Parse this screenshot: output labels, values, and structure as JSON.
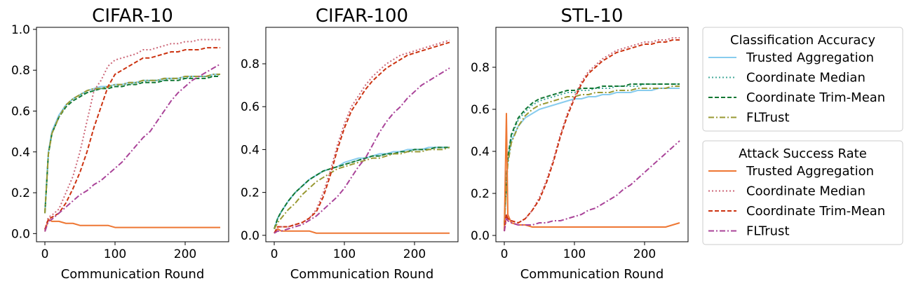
{
  "legends": [
    {
      "title": "Classification Accuracy",
      "entries": [
        "Trusted Aggregation",
        "Coordinate Median",
        "Coordinate Trim-Mean",
        "FLTrust"
      ]
    },
    {
      "title": "Attack Success Rate",
      "entries": [
        "Trusted Aggregation",
        "Coordinate Median",
        "Coordinate Trim-Mean",
        "FLTrust"
      ]
    }
  ],
  "colors": {
    "acc": [
      "#88ccee",
      "#44aa99",
      "#117733",
      "#999933"
    ],
    "asr": [
      "#ee7733",
      "#cc6677",
      "#cc3311",
      "#aa4499"
    ]
  },
  "chart_data": [
    {
      "type": "line",
      "title": "CIFAR-10",
      "xlabel": "Communication Round",
      "ylabel": "",
      "xlim": [
        -12,
        262
      ],
      "ylim": [
        -0.04,
        1.01
      ],
      "xticks": [
        0,
        100,
        200
      ],
      "yticks": [
        0.0,
        0.2,
        0.4,
        0.6,
        0.8,
        1.0
      ],
      "x": [
        0,
        5,
        10,
        20,
        30,
        40,
        50,
        60,
        70,
        80,
        90,
        100,
        110,
        120,
        130,
        140,
        150,
        160,
        170,
        180,
        190,
        200,
        210,
        220,
        230,
        240,
        250
      ],
      "series": [
        {
          "group": "acc",
          "name": "Trusted Aggregation",
          "values": [
            0.1,
            0.4,
            0.5,
            0.58,
            0.63,
            0.66,
            0.68,
            0.7,
            0.71,
            0.72,
            0.72,
            0.73,
            0.73,
            0.74,
            0.74,
            0.75,
            0.75,
            0.75,
            0.76,
            0.76,
            0.76,
            0.77,
            0.77,
            0.77,
            0.77,
            0.78,
            0.78
          ]
        },
        {
          "group": "acc",
          "name": "Coordinate Median",
          "values": [
            0.1,
            0.39,
            0.49,
            0.57,
            0.63,
            0.66,
            0.68,
            0.69,
            0.7,
            0.71,
            0.72,
            0.72,
            0.73,
            0.73,
            0.74,
            0.74,
            0.75,
            0.75,
            0.75,
            0.76,
            0.76,
            0.76,
            0.77,
            0.77,
            0.77,
            0.77,
            0.78
          ]
        },
        {
          "group": "acc",
          "name": "Coordinate Trim-Mean",
          "values": [
            0.1,
            0.39,
            0.49,
            0.57,
            0.62,
            0.65,
            0.67,
            0.69,
            0.7,
            0.71,
            0.71,
            0.72,
            0.72,
            0.73,
            0.73,
            0.74,
            0.74,
            0.74,
            0.75,
            0.75,
            0.75,
            0.76,
            0.76,
            0.76,
            0.76,
            0.77,
            0.77
          ]
        },
        {
          "group": "acc",
          "name": "FLTrust",
          "values": [
            0.1,
            0.39,
            0.49,
            0.57,
            0.63,
            0.66,
            0.68,
            0.7,
            0.71,
            0.71,
            0.72,
            0.73,
            0.73,
            0.74,
            0.74,
            0.75,
            0.75,
            0.75,
            0.76,
            0.76,
            0.76,
            0.77,
            0.77,
            0.77,
            0.77,
            0.78,
            0.78
          ]
        },
        {
          "group": "asr",
          "name": "Trusted Aggregation",
          "values": [
            0.01,
            0.07,
            0.06,
            0.06,
            0.05,
            0.05,
            0.04,
            0.04,
            0.04,
            0.04,
            0.04,
            0.03,
            0.03,
            0.03,
            0.03,
            0.03,
            0.03,
            0.03,
            0.03,
            0.03,
            0.03,
            0.03,
            0.03,
            0.03,
            0.03,
            0.03,
            0.03
          ]
        },
        {
          "group": "asr",
          "name": "Coordinate Median",
          "values": [
            0.02,
            0.08,
            0.09,
            0.12,
            0.2,
            0.28,
            0.4,
            0.55,
            0.7,
            0.75,
            0.82,
            0.85,
            0.86,
            0.87,
            0.88,
            0.9,
            0.9,
            0.91,
            0.92,
            0.93,
            0.93,
            0.94,
            0.94,
            0.95,
            0.95,
            0.95,
            0.95
          ]
        },
        {
          "group": "asr",
          "name": "Coordinate Trim-Mean",
          "values": [
            0.02,
            0.07,
            0.08,
            0.1,
            0.15,
            0.22,
            0.3,
            0.4,
            0.52,
            0.62,
            0.72,
            0.78,
            0.8,
            0.82,
            0.84,
            0.86,
            0.86,
            0.87,
            0.88,
            0.89,
            0.89,
            0.9,
            0.9,
            0.9,
            0.91,
            0.91,
            0.91
          ]
        },
        {
          "group": "asr",
          "name": "FLTrust",
          "values": [
            0.01,
            0.06,
            0.07,
            0.1,
            0.13,
            0.16,
            0.19,
            0.21,
            0.24,
            0.26,
            0.29,
            0.32,
            0.35,
            0.39,
            0.43,
            0.47,
            0.5,
            0.55,
            0.6,
            0.65,
            0.69,
            0.72,
            0.75,
            0.77,
            0.79,
            0.81,
            0.83
          ]
        }
      ]
    },
    {
      "type": "line",
      "title": "CIFAR-100",
      "xlabel": "Communication Round",
      "ylabel": "",
      "xlim": [
        -12,
        262
      ],
      "ylim": [
        -0.03,
        0.97
      ],
      "xticks": [
        0,
        100,
        200
      ],
      "yticks": [
        0.0,
        0.2,
        0.4,
        0.6,
        0.8
      ],
      "x": [
        0,
        5,
        10,
        20,
        30,
        40,
        50,
        60,
        70,
        80,
        90,
        100,
        110,
        120,
        130,
        140,
        150,
        160,
        170,
        180,
        190,
        200,
        210,
        220,
        230,
        240,
        250
      ],
      "series": [
        {
          "group": "acc",
          "name": "Trusted Aggregation",
          "values": [
            0.03,
            0.08,
            0.11,
            0.16,
            0.2,
            0.23,
            0.26,
            0.28,
            0.3,
            0.31,
            0.32,
            0.34,
            0.35,
            0.36,
            0.36,
            0.37,
            0.38,
            0.38,
            0.39,
            0.39,
            0.4,
            0.4,
            0.4,
            0.41,
            0.41,
            0.41,
            0.41
          ]
        },
        {
          "group": "acc",
          "name": "Coordinate Median",
          "values": [
            0.03,
            0.08,
            0.11,
            0.16,
            0.2,
            0.23,
            0.26,
            0.28,
            0.3,
            0.31,
            0.32,
            0.33,
            0.34,
            0.35,
            0.36,
            0.37,
            0.37,
            0.38,
            0.38,
            0.39,
            0.39,
            0.4,
            0.4,
            0.4,
            0.41,
            0.41,
            0.41
          ]
        },
        {
          "group": "acc",
          "name": "Coordinate Trim-Mean",
          "values": [
            0.03,
            0.08,
            0.11,
            0.16,
            0.2,
            0.23,
            0.26,
            0.28,
            0.3,
            0.31,
            0.32,
            0.33,
            0.34,
            0.35,
            0.36,
            0.37,
            0.37,
            0.38,
            0.38,
            0.39,
            0.39,
            0.4,
            0.4,
            0.4,
            0.41,
            0.41,
            0.41
          ]
        },
        {
          "group": "acc",
          "name": "FLTrust",
          "values": [
            0.03,
            0.06,
            0.08,
            0.12,
            0.15,
            0.19,
            0.22,
            0.25,
            0.27,
            0.29,
            0.31,
            0.32,
            0.33,
            0.34,
            0.35,
            0.36,
            0.36,
            0.37,
            0.38,
            0.38,
            0.39,
            0.39,
            0.39,
            0.4,
            0.4,
            0.4,
            0.41
          ]
        },
        {
          "group": "asr",
          "name": "Trusted Aggregation",
          "values": [
            0.01,
            0.03,
            0.02,
            0.02,
            0.02,
            0.02,
            0.02,
            0.01,
            0.01,
            0.01,
            0.01,
            0.01,
            0.01,
            0.01,
            0.01,
            0.01,
            0.01,
            0.01,
            0.01,
            0.01,
            0.01,
            0.01,
            0.01,
            0.01,
            0.01,
            0.01,
            0.01
          ]
        },
        {
          "group": "asr",
          "name": "Coordinate Median",
          "values": [
            0.01,
            0.04,
            0.04,
            0.04,
            0.05,
            0.06,
            0.08,
            0.12,
            0.2,
            0.3,
            0.42,
            0.52,
            0.6,
            0.65,
            0.7,
            0.74,
            0.77,
            0.8,
            0.82,
            0.84,
            0.85,
            0.86,
            0.87,
            0.88,
            0.89,
            0.9,
            0.91
          ]
        },
        {
          "group": "asr",
          "name": "Coordinate Trim-Mean",
          "values": [
            0.01,
            0.04,
            0.04,
            0.04,
            0.05,
            0.06,
            0.08,
            0.11,
            0.18,
            0.28,
            0.4,
            0.5,
            0.58,
            0.63,
            0.68,
            0.72,
            0.75,
            0.78,
            0.8,
            0.82,
            0.84,
            0.85,
            0.86,
            0.87,
            0.88,
            0.89,
            0.9
          ]
        },
        {
          "group": "asr",
          "name": "FLTrust",
          "values": [
            0.01,
            0.02,
            0.02,
            0.03,
            0.04,
            0.05,
            0.07,
            0.09,
            0.12,
            0.15,
            0.18,
            0.22,
            0.27,
            0.32,
            0.36,
            0.42,
            0.48,
            0.53,
            0.57,
            0.6,
            0.64,
            0.67,
            0.7,
            0.72,
            0.74,
            0.76,
            0.78
          ]
        }
      ]
    },
    {
      "type": "line",
      "title": "STL-10",
      "xlabel": "Communication Round",
      "ylabel": "",
      "xlim": [
        -12,
        262
      ],
      "ylim": [
        -0.03,
        0.99
      ],
      "xticks": [
        0,
        100,
        200
      ],
      "yticks": [
        0.0,
        0.2,
        0.4,
        0.6,
        0.8
      ],
      "x": [
        0,
        3,
        5,
        10,
        20,
        30,
        40,
        50,
        60,
        70,
        80,
        90,
        100,
        110,
        120,
        130,
        140,
        150,
        160,
        170,
        180,
        190,
        200,
        210,
        220,
        230,
        240,
        250
      ],
      "series": [
        {
          "group": "acc",
          "name": "Trusted Aggregation",
          "values": [
            0.05,
            0.25,
            0.35,
            0.45,
            0.52,
            0.56,
            0.58,
            0.6,
            0.61,
            0.62,
            0.63,
            0.64,
            0.65,
            0.65,
            0.66,
            0.66,
            0.67,
            0.67,
            0.68,
            0.68,
            0.68,
            0.69,
            0.69,
            0.69,
            0.7,
            0.7,
            0.7,
            0.7
          ]
        },
        {
          "group": "acc",
          "name": "Coordinate Median",
          "values": [
            0.05,
            0.26,
            0.36,
            0.47,
            0.55,
            0.59,
            0.62,
            0.64,
            0.65,
            0.66,
            0.67,
            0.68,
            0.68,
            0.69,
            0.69,
            0.7,
            0.7,
            0.7,
            0.71,
            0.71,
            0.71,
            0.71,
            0.72,
            0.72,
            0.72,
            0.72,
            0.72,
            0.72
          ]
        },
        {
          "group": "acc",
          "name": "Coordinate Trim-Mean",
          "values": [
            0.05,
            0.26,
            0.37,
            0.48,
            0.56,
            0.6,
            0.63,
            0.65,
            0.66,
            0.67,
            0.68,
            0.69,
            0.69,
            0.7,
            0.7,
            0.7,
            0.71,
            0.71,
            0.71,
            0.71,
            0.72,
            0.72,
            0.72,
            0.72,
            0.72,
            0.72,
            0.72,
            0.72
          ]
        },
        {
          "group": "acc",
          "name": "FLTrust",
          "values": [
            0.05,
            0.24,
            0.34,
            0.44,
            0.52,
            0.57,
            0.6,
            0.62,
            0.63,
            0.64,
            0.65,
            0.66,
            0.66,
            0.67,
            0.67,
            0.68,
            0.68,
            0.68,
            0.69,
            0.69,
            0.69,
            0.7,
            0.7,
            0.7,
            0.7,
            0.7,
            0.71,
            0.71
          ]
        },
        {
          "group": "asr",
          "name": "Trusted Aggregation",
          "values": [
            0.02,
            0.58,
            0.1,
            0.06,
            0.05,
            0.05,
            0.04,
            0.04,
            0.04,
            0.04,
            0.04,
            0.04,
            0.04,
            0.04,
            0.04,
            0.04,
            0.04,
            0.04,
            0.04,
            0.04,
            0.04,
            0.04,
            0.04,
            0.04,
            0.04,
            0.04,
            0.05,
            0.06
          ]
        },
        {
          "group": "asr",
          "name": "Coordinate Median",
          "values": [
            0.02,
            0.1,
            0.08,
            0.07,
            0.06,
            0.08,
            0.12,
            0.18,
            0.26,
            0.36,
            0.48,
            0.58,
            0.66,
            0.73,
            0.78,
            0.81,
            0.84,
            0.86,
            0.88,
            0.89,
            0.9,
            0.91,
            0.92,
            0.92,
            0.93,
            0.93,
            0.94,
            0.94
          ]
        },
        {
          "group": "asr",
          "name": "Coordinate Trim-Mean",
          "values": [
            0.02,
            0.1,
            0.08,
            0.07,
            0.06,
            0.08,
            0.12,
            0.17,
            0.25,
            0.35,
            0.47,
            0.57,
            0.65,
            0.72,
            0.77,
            0.8,
            0.83,
            0.85,
            0.87,
            0.88,
            0.89,
            0.9,
            0.91,
            0.91,
            0.92,
            0.92,
            0.93,
            0.93
          ]
        },
        {
          "group": "asr",
          "name": "FLTrust",
          "values": [
            0.02,
            0.08,
            0.07,
            0.06,
            0.05,
            0.05,
            0.05,
            0.06,
            0.06,
            0.07,
            0.07,
            0.08,
            0.09,
            0.1,
            0.12,
            0.13,
            0.15,
            0.17,
            0.19,
            0.22,
            0.24,
            0.27,
            0.3,
            0.33,
            0.36,
            0.39,
            0.42,
            0.45
          ]
        }
      ]
    }
  ]
}
